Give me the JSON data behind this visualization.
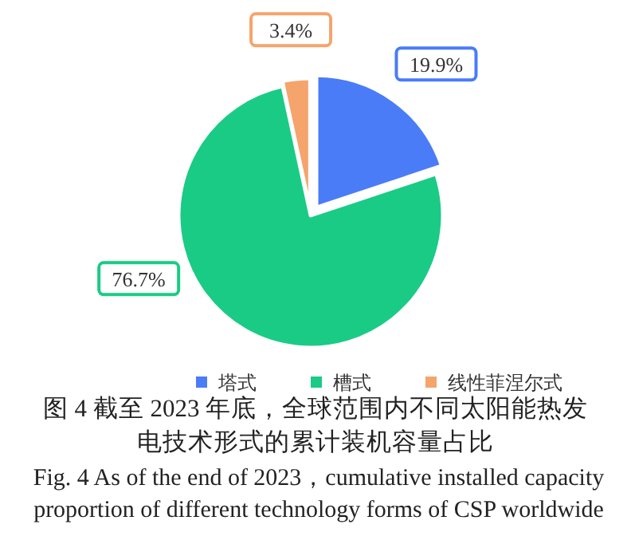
{
  "chart_data": {
    "type": "pie",
    "title": "图 4  截至 2023 年底，全球范围内不同太阳能热发电技术形式的累计装机容量占比",
    "annotations": [
      "Fig. 4  As of the end of 2023，cumulative installed capacity proportion of different technology forms of CSP worldwide"
    ],
    "categories": [
      "塔式",
      "槽式",
      "线性菲涅尔式"
    ],
    "values": [
      19.9,
      76.7,
      3.4
    ],
    "value_labels": [
      "19.9%",
      "76.7%",
      "3.4%"
    ],
    "colors": [
      "#4a7cf7",
      "#1acb86",
      "#f5a46c"
    ],
    "legend": "bottom"
  }
}
